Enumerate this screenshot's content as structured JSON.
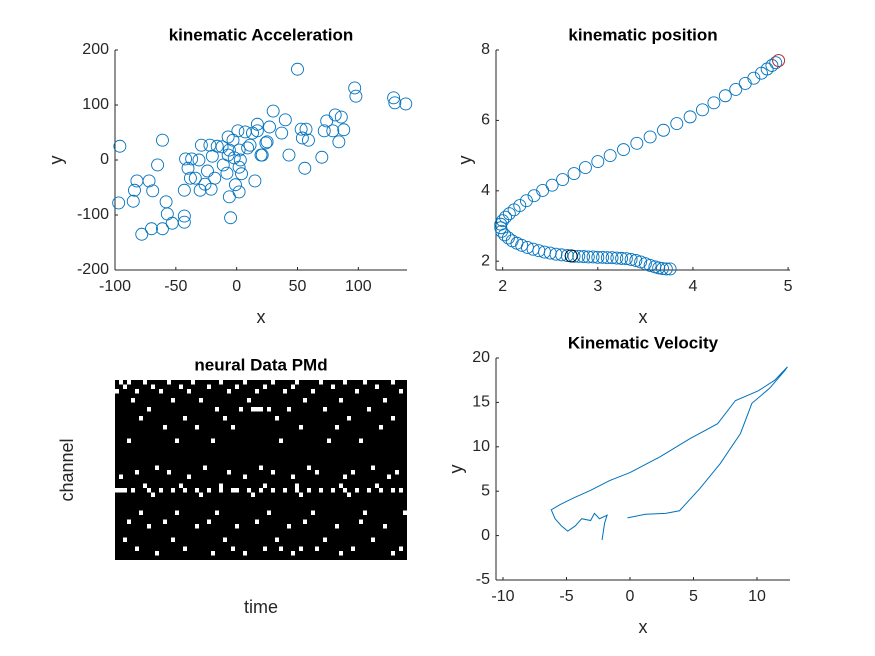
{
  "chart_data": [
    {
      "type": "scatter",
      "title": "kinematic Acceleration",
      "xlabel": "x",
      "ylabel": "y",
      "xlim": [
        -100,
        140
      ],
      "ylim": [
        -200,
        200
      ],
      "xticks": [
        -100,
        -50,
        0,
        50,
        100
      ],
      "yticks": [
        -200,
        -100,
        0,
        100,
        200
      ],
      "series": [
        {
          "color": "#0072BD",
          "x": [
            -96,
            -97,
            -85,
            -82,
            -84,
            -78,
            -72,
            -70,
            -69,
            -65,
            -61,
            -61,
            -58,
            -57,
            -53,
            -43,
            -43,
            -43,
            -42,
            -40,
            -38,
            -37,
            -34,
            -31,
            -30,
            -29,
            -26,
            -24,
            -22,
            -21,
            -20,
            -18,
            -16,
            -12,
            -11,
            -8,
            -7,
            -7,
            -6,
            -6,
            -5,
            -3,
            -2,
            -1,
            1,
            2,
            2,
            3,
            4,
            2,
            7,
            9,
            11,
            13,
            15,
            17,
            17,
            20,
            21,
            24,
            25,
            27,
            30,
            37,
            40,
            43,
            50,
            53,
            54,
            56,
            57,
            59,
            70,
            72,
            74,
            79,
            81,
            84,
            86,
            88,
            97,
            98,
            129,
            130,
            139
          ],
          "y": [
            25,
            -78,
            -75,
            -38,
            -55,
            -135,
            -38,
            -125,
            -56,
            -9,
            36,
            -125,
            -76,
            -98,
            -115,
            -113,
            -102,
            -55,
            2,
            -15,
            -33,
            2,
            -33,
            0,
            -55,
            27,
            -44,
            -20,
            27,
            -53,
            7,
            -33,
            25,
            24,
            -9,
            -24,
            42,
            9,
            18,
            -67,
            -105,
            36,
            4,
            -45,
            53,
            18,
            -13,
            0,
            -25,
            -58,
            51,
            22,
            27,
            49,
            -38,
            53,
            65,
            9,
            9,
            31,
            33,
            60,
            89,
            49,
            73,
            9,
            165,
            56,
            40,
            -15,
            56,
            36,
            5,
            53,
            71,
            53,
            82,
            33,
            78,
            55,
            131,
            116,
            113,
            104,
            102
          ]
        }
      ]
    },
    {
      "type": "scatter",
      "title": "kinematic position",
      "xlabel": "x",
      "ylabel": "y",
      "xlim": [
        1.93,
        5.02
      ],
      "ylim": [
        1.75,
        8
      ],
      "xticks": [
        2,
        3,
        4,
        5
      ],
      "yticks": [
        2,
        4,
        6,
        8
      ],
      "series": [
        {
          "color": "#0072BD",
          "x": [
            3.76,
            3.72,
            3.68,
            3.64,
            3.6,
            3.55,
            3.5,
            3.45,
            3.4,
            3.35,
            3.3,
            3.25,
            3.2,
            3.15,
            3.1,
            3.05,
            3.0,
            2.95,
            2.9,
            2.85,
            2.8,
            2.75,
            2.72,
            2.68,
            2.62,
            2.56,
            2.5,
            2.44,
            2.38,
            2.32,
            2.26,
            2.2,
            2.15,
            2.1,
            2.06,
            2.02,
            1.99,
            1.98,
            1.98,
            2.0,
            2.03,
            2.07,
            2.12,
            2.18,
            2.25,
            2.33,
            2.42,
            2.52,
            2.63,
            2.75,
            2.87,
            3.0,
            3.13,
            3.27,
            3.41,
            3.55,
            3.69,
            3.83,
            3.97,
            4.1,
            4.22,
            4.34,
            4.45,
            4.55,
            4.64,
            4.72,
            4.78,
            4.83,
            4.87,
            4.9
          ],
          "y": [
            1.78,
            1.78,
            1.79,
            1.81,
            1.84,
            1.88,
            1.93,
            1.98,
            2.02,
            2.05,
            2.07,
            2.08,
            2.09,
            2.1,
            2.1,
            2.11,
            2.11,
            2.12,
            2.12,
            2.13,
            2.14,
            2.14,
            2.15,
            2.16,
            2.18,
            2.2,
            2.23,
            2.26,
            2.3,
            2.34,
            2.39,
            2.45,
            2.51,
            2.58,
            2.66,
            2.75,
            2.85,
            2.95,
            3.05,
            3.15,
            3.25,
            3.35,
            3.46,
            3.58,
            3.72,
            3.86,
            4.01,
            4.16,
            4.32,
            4.49,
            4.66,
            4.83,
            5.0,
            5.17,
            5.35,
            5.53,
            5.72,
            5.91,
            6.1,
            6.3,
            6.5,
            6.7,
            6.88,
            7.05,
            7.2,
            7.34,
            7.46,
            7.56,
            7.64,
            7.7
          ]
        },
        {
          "color": "#000000",
          "x": [
            2.72
          ],
          "y": [
            2.15
          ]
        },
        {
          "color": "#d62728",
          "x": [
            4.9
          ],
          "y": [
            7.7
          ]
        }
      ]
    },
    {
      "type": "raster",
      "title": "neural Data PMd",
      "xlabel": "time",
      "ylabel": "channel",
      "xlim": [
        0.5,
        73.5
      ],
      "ylim": [
        40.5,
        0.5
      ],
      "color": "#ffffff",
      "background": "#000000",
      "rows": [
        {
          "channel": 1,
          "times": [
            2,
            4,
            8,
            14,
            20,
            27,
            33,
            40,
            46,
            52,
            58,
            63,
            70
          ]
        },
        {
          "channel": 2,
          "times": [
            3,
            10,
            17,
            24,
            31,
            38,
            45,
            55,
            66
          ]
        },
        {
          "channel": 3,
          "times": [
            1,
            6,
            12,
            19,
            29,
            36,
            43,
            50,
            61,
            72
          ]
        },
        {
          "channel": 5,
          "times": [
            5,
            15,
            22,
            34,
            48,
            57,
            68
          ]
        },
        {
          "channel": 7,
          "times": [
            9,
            26,
            32,
            35,
            36,
            37,
            39,
            44,
            53,
            64
          ]
        },
        {
          "channel": 9,
          "times": [
            7,
            18,
            28,
            41,
            59,
            70
          ]
        },
        {
          "channel": 11,
          "times": [
            13,
            21,
            30,
            47,
            56,
            67
          ]
        },
        {
          "channel": 14,
          "times": [
            4,
            16,
            25,
            42,
            54,
            62
          ]
        },
        {
          "channel": 20,
          "times": [
            11,
            23,
            37,
            49,
            65
          ]
        },
        {
          "channel": 21,
          "times": [
            6,
            14,
            29,
            40,
            51,
            60,
            71
          ]
        },
        {
          "channel": 22,
          "times": [
            2,
            19,
            33,
            45,
            58,
            69
          ]
        },
        {
          "channel": 24,
          "times": [
            8,
            17,
            27,
            38,
            46,
            57,
            66
          ]
        },
        {
          "channel": 25,
          "times": [
            1,
            2,
            3,
            5,
            9,
            12,
            15,
            18,
            21,
            24,
            27,
            30,
            31,
            34,
            37,
            40,
            43,
            46,
            49,
            52,
            55,
            58,
            61,
            64,
            67,
            70,
            72
          ]
        },
        {
          "channel": 26,
          "times": [
            10,
            22,
            35,
            47,
            59
          ]
        },
        {
          "channel": 30,
          "times": [
            7,
            16,
            26,
            39,
            50,
            63,
            73
          ]
        },
        {
          "channel": 32,
          "times": [
            4,
            13,
            24,
            36,
            48,
            62
          ]
        },
        {
          "channel": 33,
          "times": [
            9,
            21,
            31,
            44,
            56,
            68
          ]
        },
        {
          "channel": 36,
          "times": [
            3,
            15,
            28,
            41,
            53,
            65
          ]
        },
        {
          "channel": 38,
          "times": [
            6,
            18,
            30,
            38,
            42,
            47,
            51,
            60,
            72
          ]
        },
        {
          "channel": 39,
          "times": [
            11,
            25,
            33,
            45,
            57,
            70
          ]
        }
      ]
    },
    {
      "type": "line",
      "title": "Kinematic Velocity",
      "xlabel": "x",
      "ylabel": "y",
      "xlim": [
        -10.55,
        12.6
      ],
      "ylim": [
        -5,
        20
      ],
      "xticks": [
        -10,
        -5,
        0,
        5,
        10
      ],
      "yticks": [
        -5,
        0,
        5,
        10,
        15,
        20
      ],
      "color": "#0072BD",
      "x": [
        -2.2,
        -2.0,
        -1.8,
        -2.4,
        -2.8,
        -3.1,
        -3.8,
        -4.3,
        -4.9,
        -5.4,
        -5.9,
        -6.2,
        -5.5,
        -4.5,
        -3.1,
        -1.6,
        0,
        2.4,
        4.7,
        6.9,
        8.3,
        10.1,
        11.4,
        12.4,
        12.2,
        11.0,
        9.6,
        8.7,
        7.1,
        5.5,
        3.9,
        2.8,
        1.2,
        -0.2
      ],
      "y": [
        -0.5,
        1.4,
        2.3,
        1.9,
        2.5,
        1.7,
        1.9,
        1.1,
        0.5,
        1.1,
        1.9,
        2.9,
        3.5,
        4.2,
        5.1,
        6.2,
        7.1,
        8.9,
        10.9,
        12.6,
        15.2,
        16.3,
        17.5,
        19.0,
        18.6,
        16.6,
        14.9,
        11.5,
        8.1,
        5.3,
        2.8,
        2.5,
        2.4,
        2.0
      ]
    }
  ]
}
